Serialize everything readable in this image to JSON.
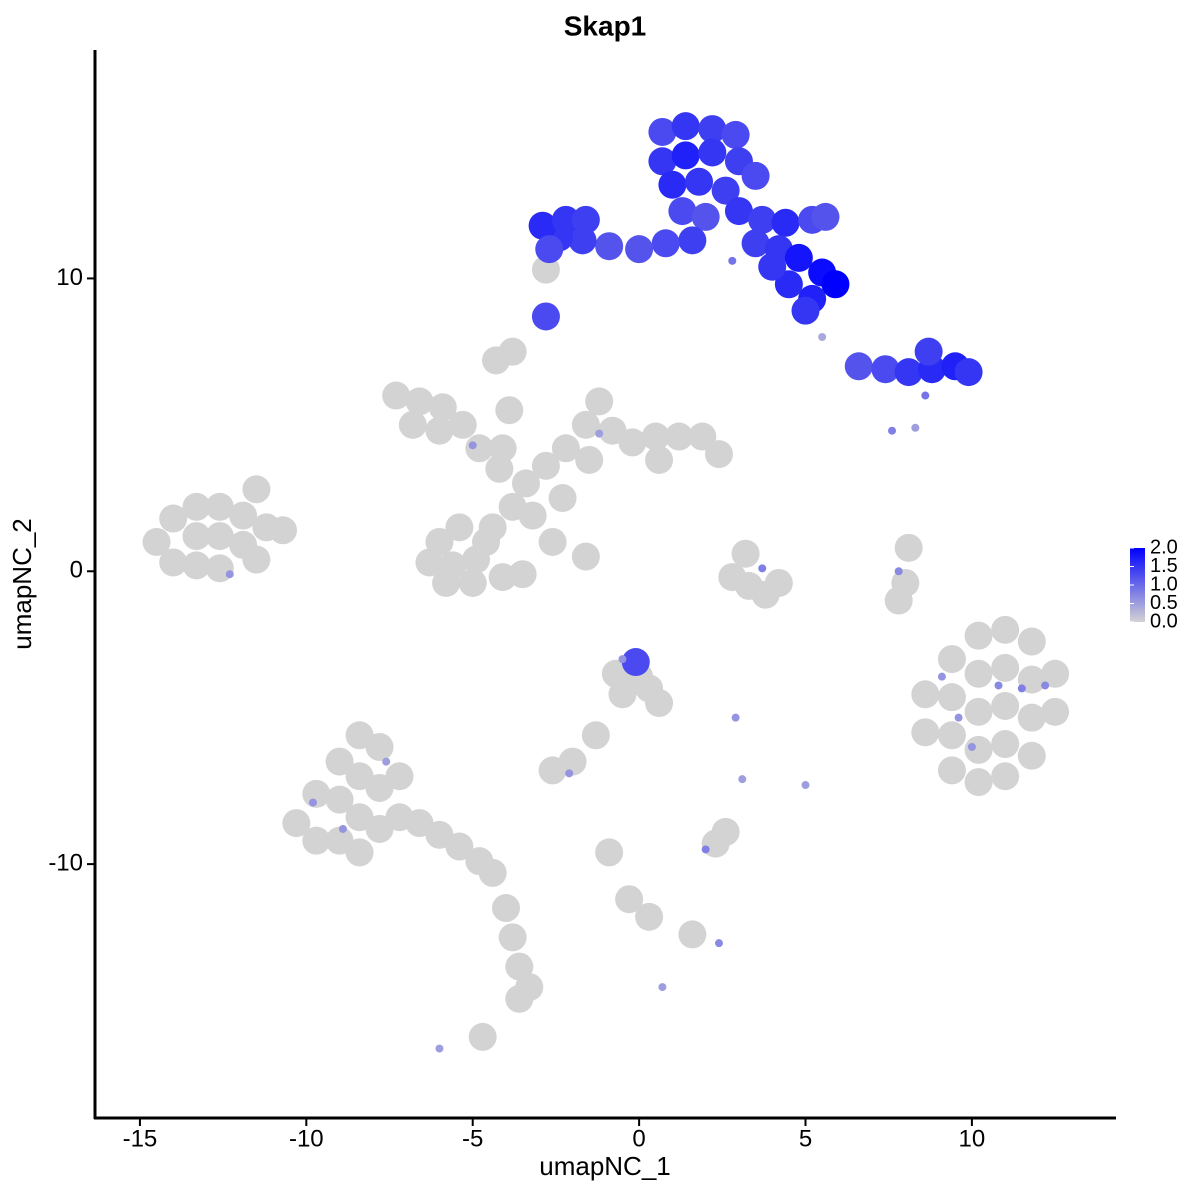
{
  "chart_data": {
    "type": "scatter",
    "title": "Skap1",
    "x_label": "umapNC_1",
    "y_label": "umapNC_2",
    "xlim": [
      -16.35,
      14.3
    ],
    "ylim": [
      -18.67,
      17.8
    ],
    "xticks": [
      -15,
      -10,
      -5,
      0,
      5,
      10
    ],
    "yticks": [
      -10,
      0,
      10
    ],
    "color_low": "#d3d3d3",
    "color_high": "#0000ff",
    "color_lim": [
      0,
      2
    ],
    "color_ticks": [
      {
        "value": 0,
        "label": "0.0"
      },
      0.5,
      {
        "value": 1,
        "label": "1.0"
      },
      1.5,
      {
        "value": 2,
        "label": "2.0"
      }
    ],
    "x": [
      -14.5,
      -14,
      -14,
      -13.3,
      -13.3,
      -13.3,
      -12.6,
      -12.6,
      -12.6,
      -11.9,
      -11.9,
      -11.2,
      -11.5,
      -11.5,
      -10.7,
      -12.3,
      -7.3,
      -6.6,
      -5.9,
      -6.8,
      -6.0,
      -5.3,
      -4.8,
      -4.2,
      -3.4,
      -2.8,
      -2.2,
      -1.6,
      -1.2,
      -0.8,
      -0.2,
      0.5,
      1.2,
      1.9,
      2.4,
      0.6,
      -1.5,
      -2.3,
      -3.2,
      -3.8,
      -4.4,
      -5.4,
      -6.0,
      -6.3,
      -5.6,
      -4.9,
      -4.6,
      -5.0,
      -5.8,
      -4.1,
      -3.5,
      -2.6,
      -1.6,
      -3.8,
      -4.3,
      -3.9,
      -4.1,
      -5.0,
      -1.2,
      -10.3,
      -9.7,
      -9.7,
      -9.0,
      -9.0,
      -9.0,
      -8.4,
      -8.4,
      -8.4,
      -8.4,
      -7.8,
      -7.8,
      -7.8,
      -7.2,
      -7.2,
      -6.6,
      -6.0,
      -5.4,
      -4.8,
      -4.4,
      -4.0,
      -3.8,
      -3.6,
      -3.6,
      -3.3,
      -4.7,
      -8.9,
      -9.8,
      -7.6,
      -6.0,
      8.6,
      8.6,
      9.4,
      9.4,
      9.4,
      9.4,
      10.2,
      10.2,
      10.2,
      10.2,
      10.2,
      11.0,
      11.0,
      11.0,
      11.0,
      11.0,
      11.8,
      11.8,
      11.8,
      11.8,
      12.5,
      12.5,
      8.0,
      8.1,
      7.8,
      10.8,
      9.6,
      11.5,
      10.0,
      12.2,
      9.1,
      7.8,
      3.3,
      3.8,
      2.8,
      3.2,
      4.2,
      3.7,
      -0.7,
      0,
      0.3,
      -0.5,
      0.6,
      -0.1,
      -0.5,
      -1.3,
      -2.0,
      -2.6,
      -2.1,
      2.3,
      2.6,
      2.0,
      3.1,
      5.0,
      -0.9,
      -0.3,
      0.3,
      1.6,
      2.4,
      0.7,
      2.9,
      -2.8,
      0.7,
      1.4,
      2.2,
      2.9,
      0.7,
      1.4,
      2.2,
      3.0,
      3.5,
      1.0,
      1.8,
      2.6,
      1.3,
      2.0,
      3.0,
      3.7,
      4.4,
      5.2,
      5.6,
      3.5,
      4.2,
      4.8,
      5.5,
      5.9,
      4.5,
      5.2,
      5.0,
      4.0,
      1.6,
      0.8,
      0.0,
      -0.9,
      -1.7,
      -2.4,
      -2.9,
      -2.2,
      -2.7,
      -1.6,
      -2.8,
      2.8,
      5.5,
      6.6,
      7.4,
      8.1,
      8.8,
      9.5,
      9.9,
      8.7,
      8.6,
      8.3,
      7.6
    ],
    "y": [
      1.0,
      1.8,
      0.3,
      2.2,
      1.2,
      0.2,
      2.2,
      1.2,
      0.1,
      1.9,
      0.9,
      1.5,
      0.4,
      2.8,
      1.4,
      -0.1,
      6.0,
      5.8,
      5.6,
      5.0,
      4.8,
      5.0,
      4.2,
      3.5,
      3.0,
      3.6,
      4.2,
      5.0,
      5.8,
      4.8,
      4.4,
      4.6,
      4.6,
      4.6,
      4.0,
      3.8,
      3.8,
      2.5,
      1.9,
      2.2,
      1.5,
      1.5,
      1.0,
      0.3,
      0.2,
      0.4,
      1.0,
      -0.4,
      -0.4,
      -0.2,
      -0.1,
      1.0,
      0.5,
      7.5,
      7.2,
      5.5,
      4.2,
      4.3,
      4.7,
      -8.6,
      -7.6,
      -9.2,
      -6.5,
      -7.8,
      -9.2,
      -5.6,
      -7.0,
      -8.4,
      -9.6,
      -6.0,
      -7.4,
      -8.8,
      -7.0,
      -8.4,
      -8.6,
      -9.0,
      -9.4,
      -9.9,
      -10.3,
      -11.5,
      -12.5,
      -13.5,
      -14.6,
      -14.2,
      -15.9,
      -8.8,
      -7.9,
      -6.5,
      -16.3,
      -4.2,
      -5.5,
      -3.0,
      -4.3,
      -5.6,
      -6.8,
      -2.2,
      -3.5,
      -4.8,
      -6.1,
      -7.2,
      -2.0,
      -3.3,
      -4.6,
      -5.9,
      -7.0,
      -2.4,
      -3.7,
      -5.0,
      -6.3,
      -3.5,
      -4.8,
      -0.4,
      0.8,
      -1.0,
      -3.9,
      -5.0,
      -4.0,
      -6.0,
      -3.9,
      -3.6,
      0.0,
      -0.5,
      -0.8,
      -0.2,
      0.6,
      -0.4,
      0.1,
      -3.5,
      -3.6,
      -4.0,
      -4.2,
      -4.5,
      -3.1,
      -3.0,
      -5.6,
      -6.5,
      -6.8,
      -6.9,
      -9.3,
      -8.9,
      -9.5,
      -7.1,
      -7.3,
      -9.6,
      -11.2,
      -11.8,
      -12.4,
      -12.7,
      -14.2,
      -5.0,
      10.3,
      15.0,
      15.2,
      15.1,
      14.9,
      14.0,
      14.2,
      14.3,
      14.0,
      13.5,
      13.2,
      13.3,
      13.0,
      12.3,
      12.1,
      12.3,
      12.0,
      11.9,
      12.0,
      12.1,
      11.2,
      11.0,
      10.7,
      10.2,
      9.8,
      9.8,
      9.3,
      8.9,
      10.4,
      11.3,
      11.2,
      11.0,
      11.1,
      11.3,
      11.4,
      11.8,
      12.0,
      11.0,
      12.0,
      8.7,
      10.6,
      8.0,
      7.0,
      6.9,
      6.8,
      6.9,
      7.0,
      6.8,
      7.5,
      6.0,
      4.9,
      4.8
    ],
    "values": [
      0,
      0,
      0,
      0,
      0,
      0,
      0,
      0,
      0,
      0,
      0,
      0,
      0,
      0,
      0,
      0.6,
      0,
      0,
      0,
      0,
      0,
      0,
      0,
      0,
      0,
      0,
      0,
      0,
      0,
      0,
      0,
      0,
      0,
      0,
      0,
      0,
      0,
      0,
      0,
      0,
      0,
      0,
      0,
      0,
      0,
      0,
      0,
      0,
      0,
      0,
      0,
      0,
      0,
      0,
      0,
      0,
      0,
      0.6,
      0.5,
      0,
      0,
      0,
      0,
      0,
      0,
      0,
      0,
      0,
      0,
      0,
      0,
      0,
      0,
      0,
      0,
      0,
      0,
      0,
      0,
      0,
      0,
      0,
      0,
      0,
      0,
      0.6,
      0.6,
      0.5,
      0.5,
      0,
      0,
      0,
      0,
      0,
      0,
      0,
      0,
      0,
      0,
      0,
      0,
      0,
      0,
      0,
      0,
      0,
      0,
      0,
      0,
      0,
      0,
      0,
      0,
      0,
      0.7,
      0.6,
      0.8,
      0.6,
      0.7,
      0.6,
      0.7,
      0,
      0,
      0,
      0,
      0,
      0.8,
      0,
      0,
      0,
      0,
      0,
      1.3,
      0.6,
      0,
      0,
      0,
      0.6,
      0,
      0,
      0.8,
      0.5,
      0.5,
      0,
      0,
      0,
      0,
      0.7,
      0.5,
      0.6,
      0,
      1.3,
      1.5,
      1.4,
      1.3,
      1.5,
      1.7,
      1.5,
      1.4,
      1.3,
      1.6,
      1.5,
      1.4,
      1.3,
      1.2,
      1.5,
      1.4,
      1.6,
      1.3,
      1.2,
      1.4,
      1.5,
      1.8,
      1.9,
      2.0,
      1.6,
      1.7,
      1.5,
      1.5,
      1.4,
      1.3,
      1.2,
      1.2,
      1.4,
      1.5,
      1.6,
      1.5,
      1.3,
      1.4,
      1.3,
      0.9,
      0.4,
      1.2,
      1.3,
      1.5,
      1.6,
      1.7,
      1.5,
      1.4,
      0.9,
      0.5,
      0.8
    ]
  }
}
